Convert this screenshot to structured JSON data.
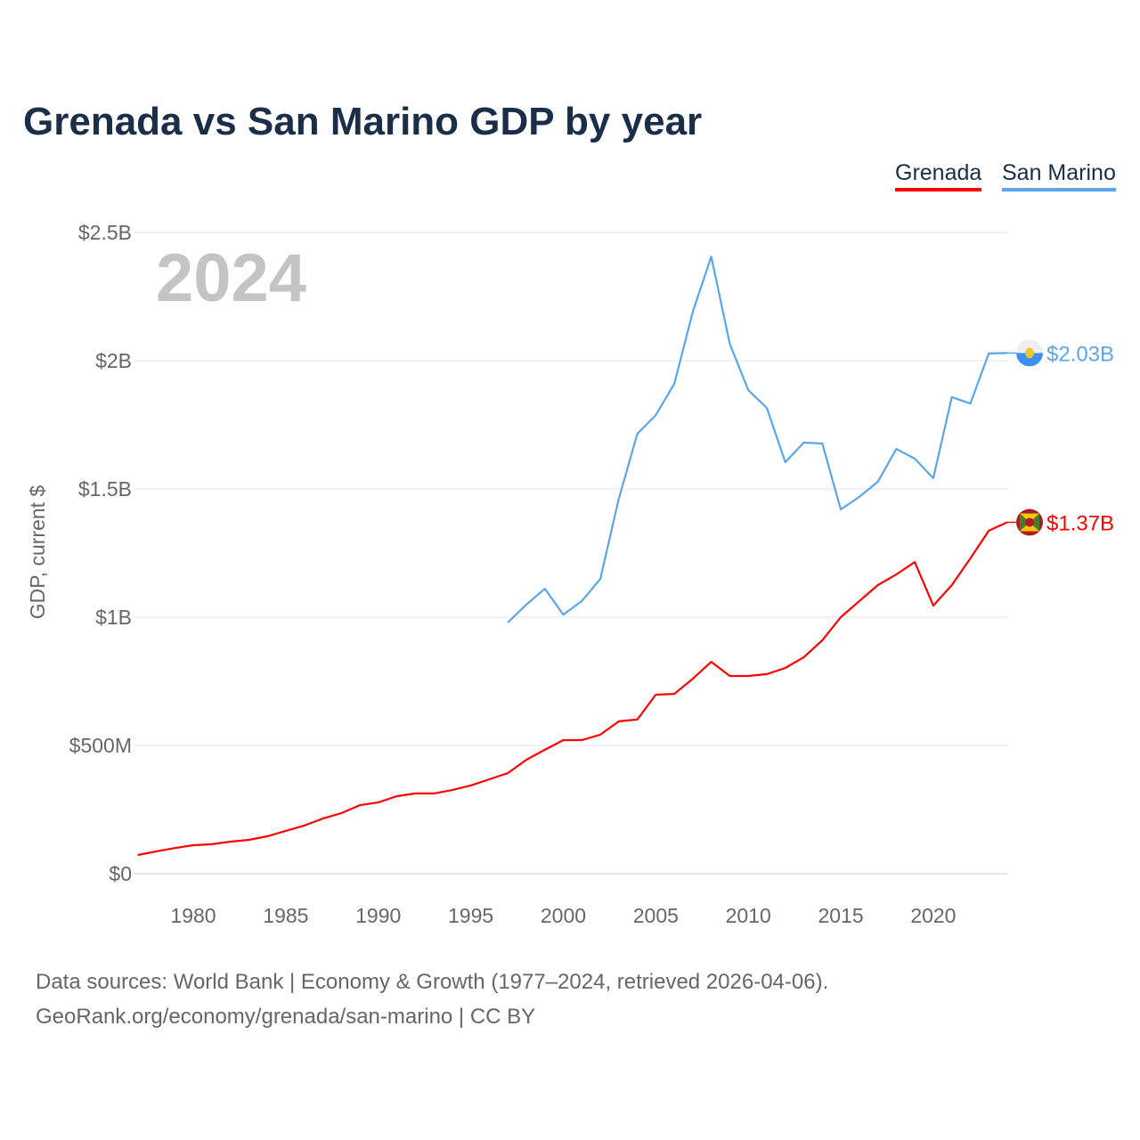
{
  "chart_data": {
    "type": "line",
    "title": "Grenada vs San Marino GDP by year",
    "ylabel": "GDP, current $",
    "xlabel": "",
    "year_watermark": "2024",
    "ylim": [
      0,
      2.5
    ],
    "xlim": [
      1977,
      2024
    ],
    "yticks": [
      {
        "v": 0,
        "label": "$0"
      },
      {
        "v": 0.5,
        "label": "$500M"
      },
      {
        "v": 1,
        "label": "$1B"
      },
      {
        "v": 1.5,
        "label": "$1.5B"
      },
      {
        "v": 2,
        "label": "$2B"
      },
      {
        "v": 2.5,
        "label": "$2.5B"
      }
    ],
    "xticks": [
      1980,
      1985,
      1990,
      1995,
      2000,
      2005,
      2010,
      2015,
      2020
    ],
    "units": "billions USD",
    "legend_placement": "top-right",
    "series": [
      {
        "name": "Grenada",
        "color": "#ff0000",
        "end_label": "$1.37B",
        "flag": "grenada-flag",
        "x": [
          1977,
          1978,
          1979,
          1980,
          1981,
          1982,
          1983,
          1984,
          1985,
          1986,
          1987,
          1988,
          1989,
          1990,
          1991,
          1992,
          1993,
          1994,
          1995,
          1996,
          1997,
          1998,
          1999,
          2000,
          2001,
          2002,
          2003,
          2004,
          2005,
          2006,
          2007,
          2008,
          2009,
          2010,
          2011,
          2012,
          2013,
          2014,
          2015,
          2016,
          2017,
          2018,
          2019,
          2020,
          2021,
          2022,
          2023,
          2024
        ],
        "values": [
          0.073,
          0.087,
          0.1,
          0.111,
          0.115,
          0.125,
          0.132,
          0.146,
          0.167,
          0.188,
          0.215,
          0.236,
          0.267,
          0.278,
          0.302,
          0.313,
          0.313,
          0.326,
          0.344,
          0.368,
          0.392,
          0.444,
          0.483,
          0.521,
          0.521,
          0.542,
          0.594,
          0.601,
          0.698,
          0.701,
          0.76,
          0.826,
          0.771,
          0.771,
          0.778,
          0.802,
          0.844,
          0.91,
          1.0,
          1.063,
          1.125,
          1.167,
          1.215,
          1.045,
          1.125,
          1.229,
          1.337,
          1.37
        ]
      },
      {
        "name": "San Marino",
        "color": "#5aa6ea",
        "end_label": "$2.03B",
        "flag": "san-marino-flag",
        "x": [
          1997,
          1998,
          1999,
          2000,
          2001,
          2002,
          2003,
          2004,
          2005,
          2006,
          2007,
          2008,
          2009,
          2010,
          2011,
          2012,
          2013,
          2014,
          2015,
          2016,
          2017,
          2018,
          2019,
          2020,
          2021,
          2022,
          2023,
          2024
        ],
        "values": [
          0.979,
          1.049,
          1.111,
          1.01,
          1.063,
          1.149,
          1.462,
          1.715,
          1.788,
          1.91,
          2.191,
          2.406,
          2.066,
          1.885,
          1.816,
          1.604,
          1.681,
          1.677,
          1.42,
          1.469,
          1.528,
          1.656,
          1.618,
          1.542,
          1.858,
          1.833,
          2.028,
          2.03
        ]
      }
    ]
  },
  "footer": {
    "line1": "Data sources: World Bank | Economy & Growth (1977–2024, retrieved 2026-04-06).",
    "line2": "GeoRank.org/economy/grenada/san-marino | CC BY"
  }
}
